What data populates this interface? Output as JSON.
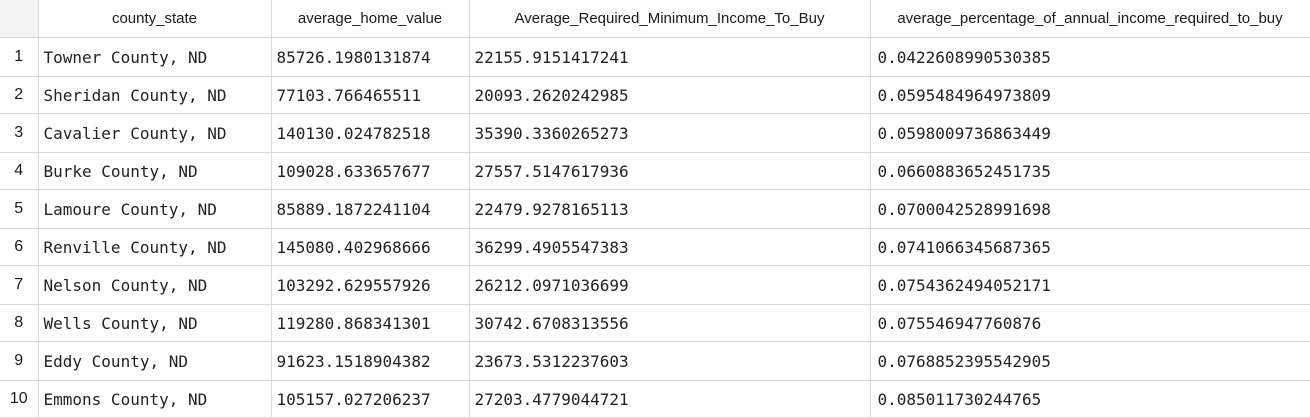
{
  "columns": [
    "county_state",
    "average_home_value",
    "Average_Required_Minimum_Income_To_Buy",
    "average_percentage_of_annual_income_required_to_buy"
  ],
  "rows": [
    {
      "index": "1",
      "county_state": "Towner County, ND",
      "average_home_value": "85726.1980131874",
      "min_income": "22155.9151417241",
      "pct_income": "0.0422608990530385"
    },
    {
      "index": "2",
      "county_state": "Sheridan County, ND",
      "average_home_value": "77103.766465511",
      "min_income": "20093.2620242985",
      "pct_income": "0.0595484964973809"
    },
    {
      "index": "3",
      "county_state": "Cavalier County, ND",
      "average_home_value": "140130.024782518",
      "min_income": "35390.3360265273",
      "pct_income": "0.0598009736863449"
    },
    {
      "index": "4",
      "county_state": "Burke County, ND",
      "average_home_value": "109028.633657677",
      "min_income": "27557.5147617936",
      "pct_income": "0.0660883652451735"
    },
    {
      "index": "5",
      "county_state": "Lamoure County, ND",
      "average_home_value": "85889.1872241104",
      "min_income": "22479.9278165113",
      "pct_income": "0.0700042528991698"
    },
    {
      "index": "6",
      "county_state": "Renville County, ND",
      "average_home_value": "145080.402968666",
      "min_income": "36299.4905547383",
      "pct_income": "0.0741066345687365"
    },
    {
      "index": "7",
      "county_state": "Nelson County, ND",
      "average_home_value": "103292.629557926",
      "min_income": "26212.0971036699",
      "pct_income": "0.0754362494052171"
    },
    {
      "index": "8",
      "county_state": "Wells County, ND",
      "average_home_value": "119280.868341301",
      "min_income": "30742.6708313556",
      "pct_income": "0.075546947760876"
    },
    {
      "index": "9",
      "county_state": "Eddy County, ND",
      "average_home_value": "91623.1518904382",
      "min_income": "23673.5312237603",
      "pct_income": "0.0768852395542905"
    },
    {
      "index": "10",
      "county_state": "Emmons County, ND",
      "average_home_value": "105157.027206237",
      "min_income": "27203.4779044721",
      "pct_income": "0.085011730244765"
    }
  ]
}
